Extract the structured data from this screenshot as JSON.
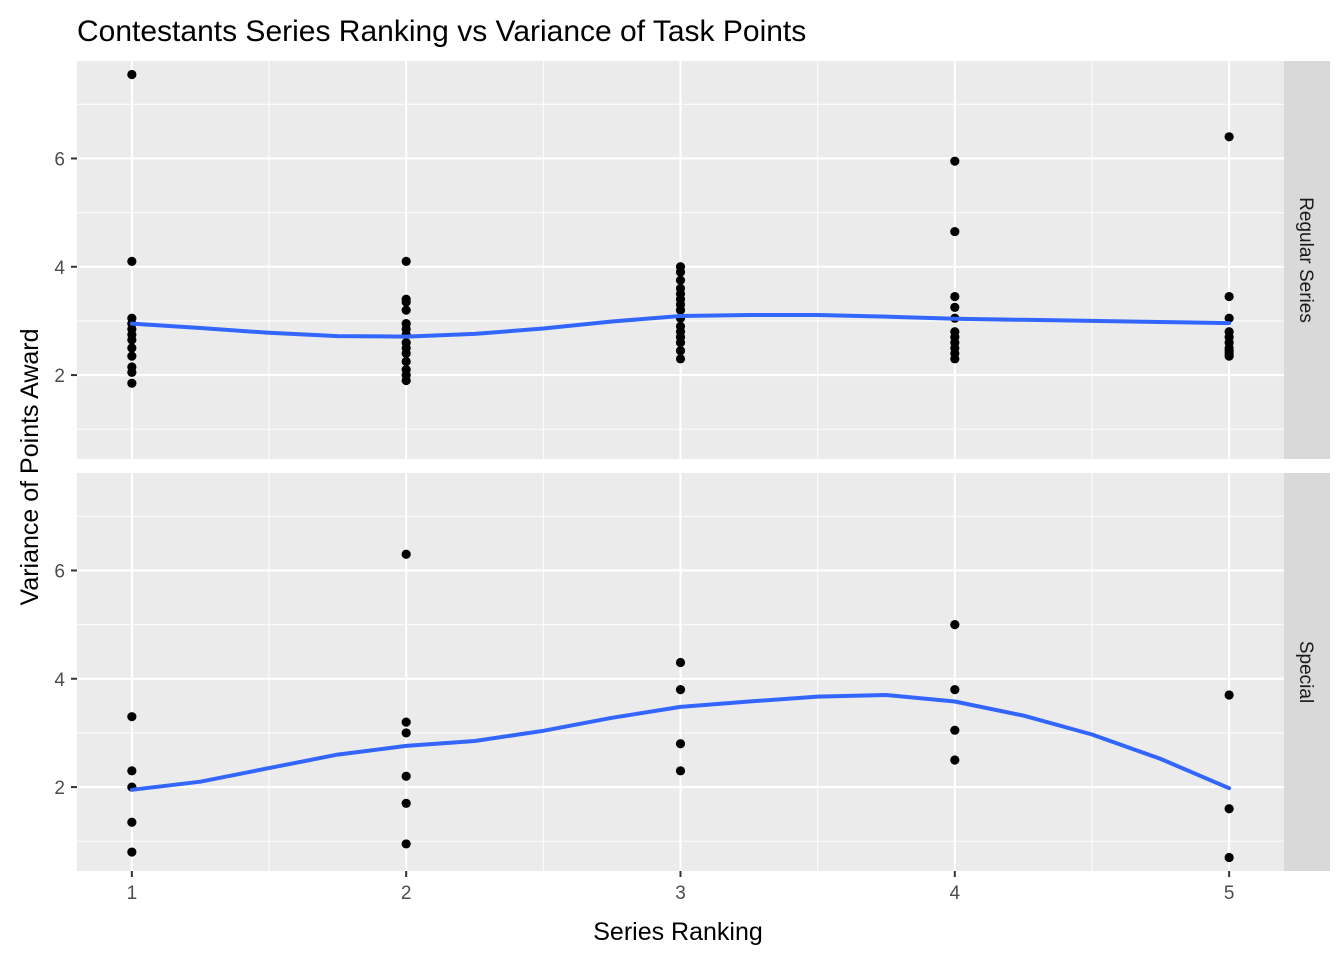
{
  "chart_data": {
    "type": "scatter",
    "title": "Contestants Series Ranking vs Variance of Task Points",
    "xlabel": "Series Ranking",
    "ylabel": "Variance of Points Award",
    "x_ticks": [
      1,
      2,
      3,
      4,
      5
    ],
    "y_ticks": [
      2,
      4,
      6
    ],
    "xlim": [
      0.8,
      5.2
    ],
    "ylim": [
      0.45,
      7.8
    ],
    "grid": true,
    "smooth_color": "#3366FF",
    "point_color": "#000000",
    "panel_color": "#EBEBEB",
    "strip_color": "#D9D9D9",
    "facets": [
      {
        "label": "Regular Series",
        "points": [
          [
            1,
            7.55
          ],
          [
            1,
            4.1
          ],
          [
            1,
            3.05
          ],
          [
            1,
            2.95
          ],
          [
            1,
            2.85
          ],
          [
            1,
            2.75
          ],
          [
            1,
            2.65
          ],
          [
            1,
            2.5
          ],
          [
            1,
            2.35
          ],
          [
            1,
            2.15
          ],
          [
            1,
            2.05
          ],
          [
            1,
            1.85
          ],
          [
            2,
            4.1
          ],
          [
            2,
            3.4
          ],
          [
            2,
            3.35
          ],
          [
            2,
            3.2
          ],
          [
            2,
            2.95
          ],
          [
            2,
            2.85
          ],
          [
            2,
            2.75
          ],
          [
            2,
            2.6
          ],
          [
            2,
            2.5
          ],
          [
            2,
            2.4
          ],
          [
            2,
            2.25
          ],
          [
            2,
            2.1
          ],
          [
            2,
            2.0
          ],
          [
            2,
            1.9
          ],
          [
            3,
            4.0
          ],
          [
            3,
            3.9
          ],
          [
            3,
            3.75
          ],
          [
            3,
            3.6
          ],
          [
            3,
            3.5
          ],
          [
            3,
            3.4
          ],
          [
            3,
            3.3
          ],
          [
            3,
            3.2
          ],
          [
            3,
            3.05
          ],
          [
            3,
            2.9
          ],
          [
            3,
            2.8
          ],
          [
            3,
            2.7
          ],
          [
            3,
            2.6
          ],
          [
            3,
            2.45
          ],
          [
            3,
            2.3
          ],
          [
            4,
            5.95
          ],
          [
            4,
            4.65
          ],
          [
            4,
            3.45
          ],
          [
            4,
            3.25
          ],
          [
            4,
            3.05
          ],
          [
            4,
            2.8
          ],
          [
            4,
            2.7
          ],
          [
            4,
            2.6
          ],
          [
            4,
            2.5
          ],
          [
            4,
            2.4
          ],
          [
            4,
            2.3
          ],
          [
            5,
            6.4
          ],
          [
            5,
            3.45
          ],
          [
            5,
            3.05
          ],
          [
            5,
            2.8
          ],
          [
            5,
            2.7
          ],
          [
            5,
            2.6
          ],
          [
            5,
            2.5
          ],
          [
            5,
            2.45
          ],
          [
            5,
            2.4
          ],
          [
            5,
            2.35
          ]
        ],
        "smooth": [
          [
            1,
            2.95
          ],
          [
            1.25,
            2.87
          ],
          [
            1.5,
            2.78
          ],
          [
            1.75,
            2.72
          ],
          [
            2,
            2.71
          ],
          [
            2.25,
            2.76
          ],
          [
            2.5,
            2.86
          ],
          [
            2.75,
            2.99
          ],
          [
            3,
            3.09
          ],
          [
            3.25,
            3.11
          ],
          [
            3.5,
            3.11
          ],
          [
            3.75,
            3.08
          ],
          [
            4,
            3.04
          ],
          [
            4.25,
            3.02
          ],
          [
            4.5,
            3.0
          ],
          [
            4.75,
            2.98
          ],
          [
            5,
            2.96
          ]
        ]
      },
      {
        "label": "Special",
        "points": [
          [
            1,
            3.3
          ],
          [
            1,
            2.3
          ],
          [
            1,
            2.0
          ],
          [
            1,
            1.35
          ],
          [
            1,
            0.8
          ],
          [
            2,
            6.3
          ],
          [
            2,
            3.2
          ],
          [
            2,
            3.0
          ],
          [
            2,
            2.2
          ],
          [
            2,
            1.7
          ],
          [
            2,
            0.95
          ],
          [
            3,
            4.3
          ],
          [
            3,
            3.8
          ],
          [
            3,
            2.8
          ],
          [
            3,
            2.3
          ],
          [
            4,
            5.0
          ],
          [
            4,
            3.8
          ],
          [
            4,
            3.05
          ],
          [
            4,
            2.5
          ],
          [
            5,
            3.7
          ],
          [
            5,
            1.6
          ],
          [
            5,
            0.7
          ]
        ],
        "smooth": [
          [
            1,
            1.95
          ],
          [
            1.25,
            2.1
          ],
          [
            1.5,
            2.35
          ],
          [
            1.75,
            2.6
          ],
          [
            2,
            2.76
          ],
          [
            2.25,
            2.85
          ],
          [
            2.5,
            3.04
          ],
          [
            2.75,
            3.28
          ],
          [
            3,
            3.48
          ],
          [
            3.25,
            3.58
          ],
          [
            3.5,
            3.67
          ],
          [
            3.75,
            3.7
          ],
          [
            4,
            3.58
          ],
          [
            4.25,
            3.32
          ],
          [
            4.5,
            2.97
          ],
          [
            4.75,
            2.52
          ],
          [
            5,
            1.98
          ]
        ]
      }
    ]
  }
}
